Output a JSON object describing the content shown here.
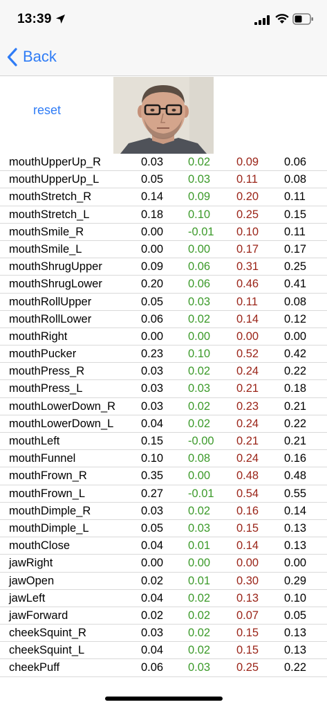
{
  "status_bar": {
    "time": "13:39"
  },
  "nav": {
    "back_label": "Back"
  },
  "controls": {
    "reset_label": "reset"
  },
  "colors": {
    "accent": "#2f7cf6",
    "positive_delta": "#3c9a2a",
    "max_value": "#9a2418"
  },
  "table": {
    "rows": [
      {
        "name": "mouthUpperUp_R",
        "v1": "0.03",
        "v2": "0.02",
        "v3": "0.09",
        "v4": "0.06"
      },
      {
        "name": "mouthUpperUp_L",
        "v1": "0.05",
        "v2": "0.03",
        "v3": "0.11",
        "v4": "0.08"
      },
      {
        "name": "mouthStretch_R",
        "v1": "0.14",
        "v2": "0.09",
        "v3": "0.20",
        "v4": "0.11"
      },
      {
        "name": "mouthStretch_L",
        "v1": "0.18",
        "v2": "0.10",
        "v3": "0.25",
        "v4": "0.15"
      },
      {
        "name": "mouthSmile_R",
        "v1": "0.00",
        "v2": "-0.01",
        "v3": "0.10",
        "v4": "0.11"
      },
      {
        "name": "mouthSmile_L",
        "v1": "0.00",
        "v2": "0.00",
        "v3": "0.17",
        "v4": "0.17"
      },
      {
        "name": "mouthShrugUpper",
        "v1": "0.09",
        "v2": "0.06",
        "v3": "0.31",
        "v4": "0.25"
      },
      {
        "name": "mouthShrugLower",
        "v1": "0.20",
        "v2": "0.06",
        "v3": "0.46",
        "v4": "0.41"
      },
      {
        "name": "mouthRollUpper",
        "v1": "0.05",
        "v2": "0.03",
        "v3": "0.11",
        "v4": "0.08"
      },
      {
        "name": "mouthRollLower",
        "v1": "0.06",
        "v2": "0.02",
        "v3": "0.14",
        "v4": "0.12"
      },
      {
        "name": "mouthRight",
        "v1": "0.00",
        "v2": "0.00",
        "v3": "0.00",
        "v4": "0.00"
      },
      {
        "name": "mouthPucker",
        "v1": "0.23",
        "v2": "0.10",
        "v3": "0.52",
        "v4": "0.42"
      },
      {
        "name": "mouthPress_R",
        "v1": "0.03",
        "v2": "0.02",
        "v3": "0.24",
        "v4": "0.22"
      },
      {
        "name": "mouthPress_L",
        "v1": "0.03",
        "v2": "0.03",
        "v3": "0.21",
        "v4": "0.18"
      },
      {
        "name": "mouthLowerDown_R",
        "v1": "0.03",
        "v2": "0.02",
        "v3": "0.23",
        "v4": "0.21"
      },
      {
        "name": "mouthLowerDown_L",
        "v1": "0.04",
        "v2": "0.02",
        "v3": "0.24",
        "v4": "0.22"
      },
      {
        "name": "mouthLeft",
        "v1": "0.15",
        "v2": "-0.00",
        "v3": "0.21",
        "v4": "0.21"
      },
      {
        "name": "mouthFunnel",
        "v1": "0.10",
        "v2": "0.08",
        "v3": "0.24",
        "v4": "0.16"
      },
      {
        "name": "mouthFrown_R",
        "v1": "0.35",
        "v2": "0.00",
        "v3": "0.48",
        "v4": "0.48"
      },
      {
        "name": "mouthFrown_L",
        "v1": "0.27",
        "v2": "-0.01",
        "v3": "0.54",
        "v4": "0.55"
      },
      {
        "name": "mouthDimple_R",
        "v1": "0.03",
        "v2": "0.02",
        "v3": "0.16",
        "v4": "0.14"
      },
      {
        "name": "mouthDimple_L",
        "v1": "0.05",
        "v2": "0.03",
        "v3": "0.15",
        "v4": "0.13"
      },
      {
        "name": "mouthClose",
        "v1": "0.04",
        "v2": "0.01",
        "v3": "0.14",
        "v4": "0.13"
      },
      {
        "name": "jawRight",
        "v1": "0.00",
        "v2": "0.00",
        "v3": "0.00",
        "v4": "0.00"
      },
      {
        "name": "jawOpen",
        "v1": "0.02",
        "v2": "0.01",
        "v3": "0.30",
        "v4": "0.29"
      },
      {
        "name": "jawLeft",
        "v1": "0.04",
        "v2": "0.02",
        "v3": "0.13",
        "v4": "0.10"
      },
      {
        "name": "jawForward",
        "v1": "0.02",
        "v2": "0.02",
        "v3": "0.07",
        "v4": "0.05"
      },
      {
        "name": "cheekSquint_R",
        "v1": "0.03",
        "v2": "0.02",
        "v3": "0.15",
        "v4": "0.13"
      },
      {
        "name": "cheekSquint_L",
        "v1": "0.04",
        "v2": "0.02",
        "v3": "0.15",
        "v4": "0.13"
      },
      {
        "name": "cheekPuff",
        "v1": "0.06",
        "v2": "0.03",
        "v3": "0.25",
        "v4": "0.22"
      }
    ]
  }
}
